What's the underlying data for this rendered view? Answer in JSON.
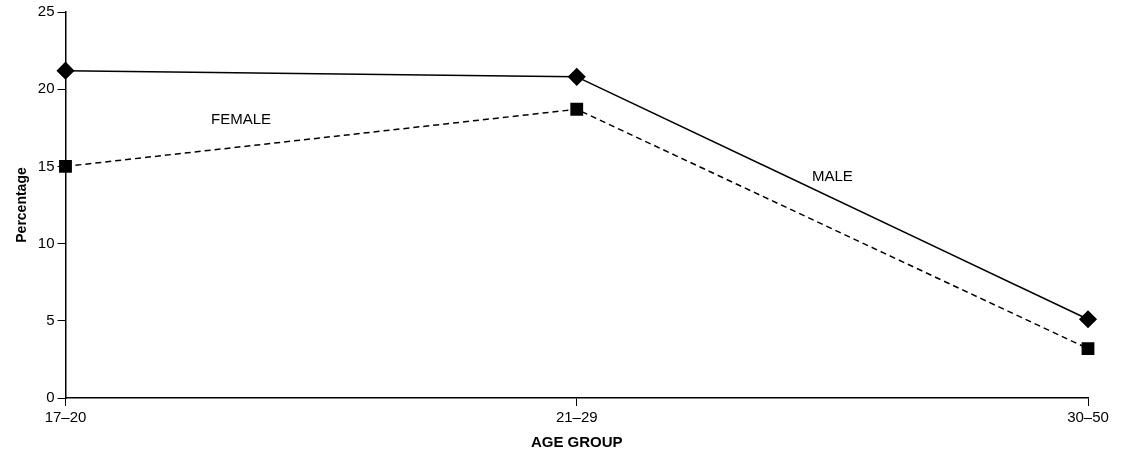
{
  "chart_data": {
    "type": "line",
    "categories": [
      "17–20",
      "21–29",
      "30–50"
    ],
    "xlabel": "AGE GROUP",
    "ylabel": "Percentage",
    "ylim": [
      0,
      25
    ],
    "yticks": [
      0,
      5,
      10,
      15,
      20,
      25
    ],
    "grid": false,
    "legend": false,
    "series": [
      {
        "name": "MALE",
        "color": "#000000",
        "values": [
          21.2,
          20.8,
          5.1
        ],
        "marker": "diamond",
        "line_style": "solid"
      },
      {
        "name": "FEMALE",
        "color": "#000000",
        "values": [
          15.0,
          18.7,
          3.2
        ],
        "marker": "square",
        "line_style": "dashed"
      }
    ]
  }
}
